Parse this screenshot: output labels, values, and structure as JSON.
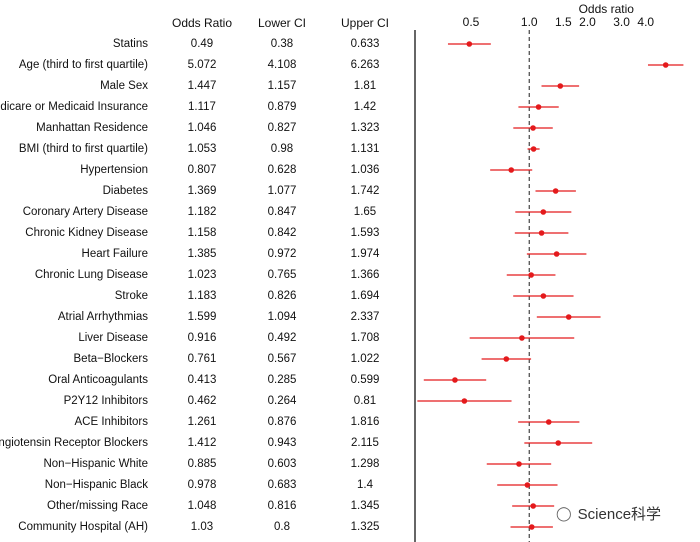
{
  "chart_data": {
    "type": "forest",
    "axis_title": "Odds ratio",
    "x_ticks": [
      0.5,
      1.0,
      1.5,
      2.0,
      3.0,
      4.0
    ],
    "x_tick_labels": [
      "0.5",
      "1.0",
      "1.5",
      "2.0",
      "3.0",
      "4.0"
    ],
    "x_axis_scale": "log",
    "xlim": [
      0.2567,
      7.63
    ],
    "reference_line": 1.0,
    "columns": [
      "Odds Ratio",
      "Lower CI",
      "Upper CI"
    ],
    "rows": [
      {
        "label": "Statins",
        "or": "0.49",
        "lower": "0.38",
        "upper": "0.633"
      },
      {
        "label": "Age (third to first quartile)",
        "or": "5.072",
        "lower": "4.108",
        "upper": "6.263"
      },
      {
        "label": "Male Sex",
        "or": "1.447",
        "lower": "1.157",
        "upper": "1.81"
      },
      {
        "label": "Medicare or Medicaid Insurance",
        "or": "1.117",
        "lower": "0.879",
        "upper": "1.42"
      },
      {
        "label": "Manhattan Residence",
        "or": "1.046",
        "lower": "0.827",
        "upper": "1.323"
      },
      {
        "label": "BMI (third to first quartile)",
        "or": "1.053",
        "lower": "0.98",
        "upper": "1.131"
      },
      {
        "label": "Hypertension",
        "or": "0.807",
        "lower": "0.628",
        "upper": "1.036"
      },
      {
        "label": "Diabetes",
        "or": "1.369",
        "lower": "1.077",
        "upper": "1.742"
      },
      {
        "label": "Coronary Artery Disease",
        "or": "1.182",
        "lower": "0.847",
        "upper": "1.65"
      },
      {
        "label": "Chronic Kidney Disease",
        "or": "1.158",
        "lower": "0.842",
        "upper": "1.593"
      },
      {
        "label": "Heart Failure",
        "or": "1.385",
        "lower": "0.972",
        "upper": "1.974"
      },
      {
        "label": "Chronic Lung Disease",
        "or": "1.023",
        "lower": "0.765",
        "upper": "1.366"
      },
      {
        "label": "Stroke",
        "or": "1.183",
        "lower": "0.826",
        "upper": "1.694"
      },
      {
        "label": "Atrial Arrhythmias",
        "or": "1.599",
        "lower": "1.094",
        "upper": "2.337"
      },
      {
        "label": "Liver Disease",
        "or": "0.916",
        "lower": "0.492",
        "upper": "1.708"
      },
      {
        "label": "Beta−Blockers",
        "or": "0.761",
        "lower": "0.567",
        "upper": "1.022"
      },
      {
        "label": "Oral Anticoagulants",
        "or": "0.413",
        "lower": "0.285",
        "upper": "0.599"
      },
      {
        "label": "P2Y12 Inhibitors",
        "or": "0.462",
        "lower": "0.264",
        "upper": "0.81"
      },
      {
        "label": "ACE Inhibitors",
        "or": "1.261",
        "lower": "0.876",
        "upper": "1.816"
      },
      {
        "label": "Angiotensin Receptor Blockers",
        "or": "1.412",
        "lower": "0.943",
        "upper": "2.115"
      },
      {
        "label": "Non−Hispanic White",
        "or": "0.885",
        "lower": "0.603",
        "upper": "1.298"
      },
      {
        "label": "Non−Hispanic Black",
        "or": "0.978",
        "lower": "0.683",
        "upper": "1.4"
      },
      {
        "label": "Other/missing Race",
        "or": "1.048",
        "lower": "0.816",
        "upper": "1.345"
      },
      {
        "label": "Community Hospital (AH)",
        "or": "1.03",
        "lower": "0.8",
        "upper": "1.325"
      }
    ],
    "colors": {
      "point": "#e41a1c",
      "ci_line": "#e41a1c",
      "axis": "#000000",
      "reference": "#444444"
    }
  },
  "watermark": {
    "text": "Science科学",
    "icon": "wechat-icon"
  }
}
